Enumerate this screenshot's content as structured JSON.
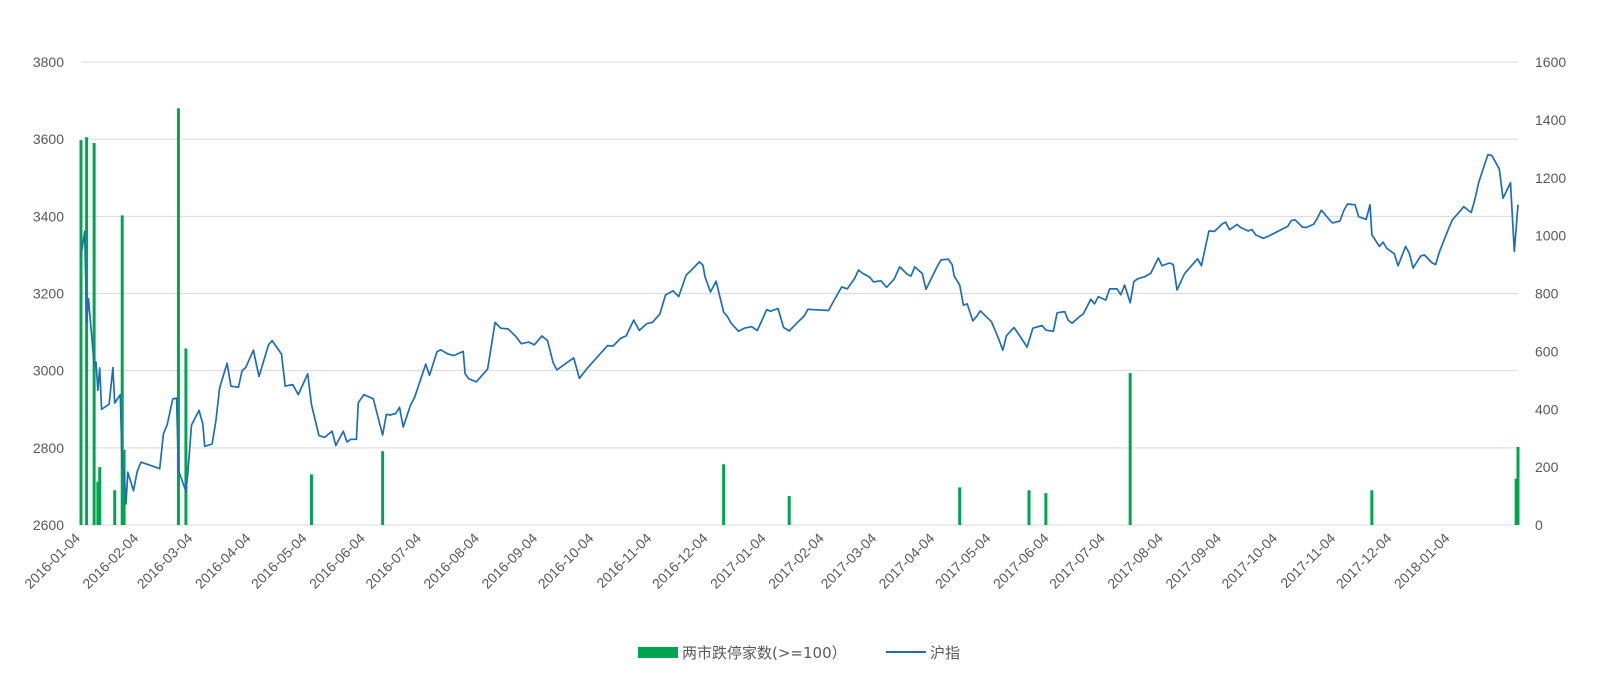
{
  "chart_data": {
    "type": "bar+line",
    "title": "",
    "left_axis": {
      "range": [
        2600,
        3800
      ],
      "ticks": [
        "2600",
        "2800",
        "3000",
        "3200",
        "3400",
        "3600",
        "3800"
      ]
    },
    "right_axis": {
      "range": [
        0,
        1600
      ],
      "ticks": [
        "0",
        "200",
        "400",
        "600",
        "800",
        "1000",
        "1200",
        "1400",
        "1600"
      ]
    },
    "x_range": [
      "2016-01-04",
      "2018-02-09"
    ],
    "x_ticks": [
      "2016-01-04",
      "2016-02-04",
      "2016-03-04",
      "2016-04-04",
      "2016-05-04",
      "2016-06-04",
      "2016-07-04",
      "2016-08-04",
      "2016-09-04",
      "2016-10-04",
      "2016-11-04",
      "2016-12-04",
      "2017-01-04",
      "2017-02-04",
      "2017-03-04",
      "2017-04-04",
      "2017-05-04",
      "2017-06-04",
      "2017-07-04",
      "2017-08-04",
      "2017-09-04",
      "2017-10-04",
      "2017-11-04",
      "2017-12-04",
      "2018-01-04"
    ],
    "grid": true,
    "legend_position": "bottom",
    "legend": [
      {
        "name": "两市跌停家数(>=100）",
        "kind": "bar",
        "color": "#00a550"
      },
      {
        "name": "沪指",
        "kind": "line",
        "color": "#1f6eb5"
      }
    ],
    "bar_series": {
      "name": "两市跌停家数(>=100）",
      "axis": "right",
      "color": "#00a550",
      "points": [
        [
          "2016-01-04",
          1330
        ],
        [
          "2016-01-07",
          1340
        ],
        [
          "2016-01-11",
          1320
        ],
        [
          "2016-01-13",
          150
        ],
        [
          "2016-01-14",
          200
        ],
        [
          "2016-01-22",
          120
        ],
        [
          "2016-01-26",
          1070
        ],
        [
          "2016-01-27",
          260
        ],
        [
          "2016-02-25",
          1440
        ],
        [
          "2016-02-29",
          610
        ],
        [
          "2016-05-06",
          175
        ],
        [
          "2016-06-13",
          255
        ],
        [
          "2016-12-12",
          210
        ],
        [
          "2017-01-16",
          100
        ],
        [
          "2017-04-17",
          130
        ],
        [
          "2017-05-24",
          120
        ],
        [
          "2017-06-02",
          110
        ],
        [
          "2017-07-17",
          525
        ],
        [
          "2017-11-23",
          120
        ],
        [
          "2018-02-08",
          160
        ],
        [
          "2018-02-09",
          270
        ]
      ]
    },
    "line_series": {
      "name": "沪指",
      "axis": "left",
      "color": "#1f6eb5",
      "points": [
        [
          "2016-01-04",
          3296
        ],
        [
          "2016-01-06",
          3361
        ],
        [
          "2016-01-07",
          3125
        ],
        [
          "2016-01-08",
          3186
        ],
        [
          "2016-01-11",
          3016
        ],
        [
          "2016-01-12",
          3022
        ],
        [
          "2016-01-13",
          2949
        ],
        [
          "2016-01-14",
          3007
        ],
        [
          "2016-01-15",
          2900
        ],
        [
          "2016-01-19",
          2913
        ],
        [
          "2016-01-21",
          3008
        ],
        [
          "2016-01-22",
          2916
        ],
        [
          "2016-01-25",
          2938
        ],
        [
          "2016-01-26",
          2749
        ],
        [
          "2016-01-27",
          2735
        ],
        [
          "2016-01-28",
          2655
        ],
        [
          "2016-01-29",
          2737
        ],
        [
          "2016-02-01",
          2689
        ],
        [
          "2016-02-03",
          2739
        ],
        [
          "2016-02-05",
          2763
        ],
        [
          "2016-02-15",
          2746
        ],
        [
          "2016-02-17",
          2836
        ],
        [
          "2016-02-19",
          2860
        ],
        [
          "2016-02-22",
          2927
        ],
        [
          "2016-02-24",
          2929
        ],
        [
          "2016-02-25",
          2742
        ],
        [
          "2016-02-29",
          2687
        ],
        [
          "2016-03-01",
          2733
        ],
        [
          "2016-03-03",
          2859
        ],
        [
          "2016-03-07",
          2897
        ],
        [
          "2016-03-09",
          2862
        ],
        [
          "2016-03-10",
          2804
        ],
        [
          "2016-03-14",
          2810
        ],
        [
          "2016-03-16",
          2870
        ],
        [
          "2016-03-18",
          2955
        ],
        [
          "2016-03-22",
          3019
        ],
        [
          "2016-03-24",
          2960
        ],
        [
          "2016-03-28",
          2957
        ],
        [
          "2016-03-30",
          3000
        ],
        [
          "2016-04-01",
          3009
        ],
        [
          "2016-04-05",
          3053
        ],
        [
          "2016-04-08",
          2985
        ],
        [
          "2016-04-13",
          3066
        ],
        [
          "2016-04-15",
          3078
        ],
        [
          "2016-04-20",
          3043
        ],
        [
          "2016-04-22",
          2960
        ],
        [
          "2016-04-26",
          2964
        ],
        [
          "2016-04-29",
          2938
        ],
        [
          "2016-05-04",
          2992
        ],
        [
          "2016-05-06",
          2913
        ],
        [
          "2016-05-10",
          2832
        ],
        [
          "2016-05-13",
          2827
        ],
        [
          "2016-05-17",
          2843
        ],
        [
          "2016-05-19",
          2806
        ],
        [
          "2016-05-23",
          2843
        ],
        [
          "2016-05-25",
          2815
        ],
        [
          "2016-05-27",
          2822
        ],
        [
          "2016-05-30",
          2822
        ],
        [
          "2016-05-31",
          2917
        ],
        [
          "2016-06-03",
          2938
        ],
        [
          "2016-06-08",
          2927
        ],
        [
          "2016-06-13",
          2833
        ],
        [
          "2016-06-15",
          2887
        ],
        [
          "2016-06-17",
          2885
        ],
        [
          "2016-06-20",
          2889
        ],
        [
          "2016-06-22",
          2905
        ],
        [
          "2016-06-24",
          2854
        ],
        [
          "2016-06-28",
          2912
        ],
        [
          "2016-06-30",
          2930
        ],
        [
          "2016-07-04",
          2988
        ],
        [
          "2016-07-06",
          3017
        ],
        [
          "2016-07-08",
          2988
        ],
        [
          "2016-07-12",
          3049
        ],
        [
          "2016-07-14",
          3054
        ],
        [
          "2016-07-18",
          3043
        ],
        [
          "2016-07-21",
          3039
        ],
        [
          "2016-07-26",
          3050
        ],
        [
          "2016-07-27",
          2992
        ],
        [
          "2016-07-29",
          2979
        ],
        [
          "2016-08-02",
          2971
        ],
        [
          "2016-08-04",
          2982
        ],
        [
          "2016-08-08",
          3004
        ],
        [
          "2016-08-12",
          3125
        ],
        [
          "2016-08-15",
          3110
        ],
        [
          "2016-08-19",
          3108
        ],
        [
          "2016-08-23",
          3089
        ],
        [
          "2016-08-26",
          3070
        ],
        [
          "2016-08-30",
          3074
        ],
        [
          "2016-09-02",
          3067
        ],
        [
          "2016-09-06",
          3090
        ],
        [
          "2016-09-09",
          3078
        ],
        [
          "2016-09-12",
          3021
        ],
        [
          "2016-09-14",
          3002
        ],
        [
          "2016-09-20",
          3023
        ],
        [
          "2016-09-23",
          3033
        ],
        [
          "2016-09-26",
          2980
        ],
        [
          "2016-09-30",
          3005
        ],
        [
          "2016-10-11",
          3065
        ],
        [
          "2016-10-14",
          3064
        ],
        [
          "2016-10-18",
          3084
        ],
        [
          "2016-10-21",
          3090
        ],
        [
          "2016-10-25",
          3131
        ],
        [
          "2016-10-28",
          3104
        ],
        [
          "2016-11-01",
          3122
        ],
        [
          "2016-11-04",
          3125
        ],
        [
          "2016-11-08",
          3147
        ],
        [
          "2016-11-11",
          3196
        ],
        [
          "2016-11-15",
          3207
        ],
        [
          "2016-11-18",
          3192
        ],
        [
          "2016-11-22",
          3248
        ],
        [
          "2016-11-25",
          3262
        ],
        [
          "2016-11-29",
          3282
        ],
        [
          "2016-12-01",
          3273
        ],
        [
          "2016-12-02",
          3244
        ],
        [
          "2016-12-05",
          3204
        ],
        [
          "2016-12-08",
          3232
        ],
        [
          "2016-12-12",
          3152
        ],
        [
          "2016-12-14",
          3140
        ],
        [
          "2016-12-16",
          3123
        ],
        [
          "2016-12-20",
          3102
        ],
        [
          "2016-12-23",
          3110
        ],
        [
          "2016-12-27",
          3114
        ],
        [
          "2016-12-30",
          3104
        ],
        [
          "2017-01-04",
          3158
        ],
        [
          "2017-01-06",
          3154
        ],
        [
          "2017-01-10",
          3161
        ],
        [
          "2017-01-13",
          3112
        ],
        [
          "2017-01-16",
          3103
        ],
        [
          "2017-01-18",
          3113
        ],
        [
          "2017-01-20",
          3123
        ],
        [
          "2017-01-24",
          3142
        ],
        [
          "2017-01-26",
          3159
        ],
        [
          "2017-02-06",
          3156
        ],
        [
          "2017-02-09",
          3183
        ],
        [
          "2017-02-13",
          3217
        ],
        [
          "2017-02-16",
          3212
        ],
        [
          "2017-02-20",
          3240
        ],
        [
          "2017-02-22",
          3261
        ],
        [
          "2017-02-24",
          3253
        ],
        [
          "2017-02-28",
          3242
        ],
        [
          "2017-03-02",
          3230
        ],
        [
          "2017-03-06",
          3233
        ],
        [
          "2017-03-09",
          3216
        ],
        [
          "2017-03-13",
          3237
        ],
        [
          "2017-03-16",
          3269
        ],
        [
          "2017-03-20",
          3250
        ],
        [
          "2017-03-22",
          3245
        ],
        [
          "2017-03-24",
          3269
        ],
        [
          "2017-03-28",
          3252
        ],
        [
          "2017-03-30",
          3211
        ],
        [
          "2017-04-05",
          3270
        ],
        [
          "2017-04-07",
          3287
        ],
        [
          "2017-04-11",
          3289
        ],
        [
          "2017-04-13",
          3275
        ],
        [
          "2017-04-14",
          3246
        ],
        [
          "2017-04-17",
          3222
        ],
        [
          "2017-04-19",
          3170
        ],
        [
          "2017-04-21",
          3173
        ],
        [
          "2017-04-24",
          3129
        ],
        [
          "2017-04-26",
          3140
        ],
        [
          "2017-04-28",
          3155
        ],
        [
          "2017-05-04",
          3127
        ],
        [
          "2017-05-08",
          3080
        ],
        [
          "2017-05-10",
          3053
        ],
        [
          "2017-05-12",
          3091
        ],
        [
          "2017-05-16",
          3112
        ],
        [
          "2017-05-19",
          3091
        ],
        [
          "2017-05-23",
          3061
        ],
        [
          "2017-05-26",
          3110
        ],
        [
          "2017-05-31",
          3117
        ],
        [
          "2017-06-02",
          3105
        ],
        [
          "2017-06-06",
          3102
        ],
        [
          "2017-06-08",
          3150
        ],
        [
          "2017-06-12",
          3153
        ],
        [
          "2017-06-14",
          3130
        ],
        [
          "2017-06-16",
          3123
        ],
        [
          "2017-06-20",
          3140
        ],
        [
          "2017-06-22",
          3147
        ],
        [
          "2017-06-26",
          3185
        ],
        [
          "2017-06-28",
          3173
        ],
        [
          "2017-06-30",
          3192
        ],
        [
          "2017-07-04",
          3183
        ],
        [
          "2017-07-06",
          3212
        ],
        [
          "2017-07-10",
          3212
        ],
        [
          "2017-07-12",
          3197
        ],
        [
          "2017-07-14",
          3222
        ],
        [
          "2017-07-17",
          3176
        ],
        [
          "2017-07-19",
          3231
        ],
        [
          "2017-07-21",
          3238
        ],
        [
          "2017-07-25",
          3244
        ],
        [
          "2017-07-28",
          3253
        ],
        [
          "2017-08-01",
          3292
        ],
        [
          "2017-08-03",
          3272
        ],
        [
          "2017-08-07",
          3279
        ],
        [
          "2017-08-09",
          3275
        ],
        [
          "2017-08-11",
          3209
        ],
        [
          "2017-08-15",
          3251
        ],
        [
          "2017-08-18",
          3268
        ],
        [
          "2017-08-22",
          3290
        ],
        [
          "2017-08-24",
          3272
        ],
        [
          "2017-08-28",
          3362
        ],
        [
          "2017-08-31",
          3361
        ],
        [
          "2017-09-04",
          3380
        ],
        [
          "2017-09-06",
          3385
        ],
        [
          "2017-09-08",
          3365
        ],
        [
          "2017-09-12",
          3379
        ],
        [
          "2017-09-14",
          3371
        ],
        [
          "2017-09-18",
          3362
        ],
        [
          "2017-09-20",
          3366
        ],
        [
          "2017-09-22",
          3352
        ],
        [
          "2017-09-26",
          3343
        ],
        [
          "2017-09-29",
          3349
        ],
        [
          "2017-10-09",
          3374
        ],
        [
          "2017-10-11",
          3389
        ],
        [
          "2017-10-13",
          3391
        ],
        [
          "2017-10-17",
          3372
        ],
        [
          "2017-10-19",
          3371
        ],
        [
          "2017-10-23",
          3380
        ],
        [
          "2017-10-25",
          3396
        ],
        [
          "2017-10-27",
          3416
        ],
        [
          "2017-10-31",
          3393
        ],
        [
          "2017-11-02",
          3383
        ],
        [
          "2017-11-06",
          3388
        ],
        [
          "2017-11-08",
          3415
        ],
        [
          "2017-11-10",
          3432
        ],
        [
          "2017-11-14",
          3430
        ],
        [
          "2017-11-16",
          3399
        ],
        [
          "2017-11-20",
          3392
        ],
        [
          "2017-11-22",
          3430
        ],
        [
          "2017-11-23",
          3352
        ],
        [
          "2017-11-27",
          3322
        ],
        [
          "2017-11-29",
          3333
        ],
        [
          "2017-12-01",
          3317
        ],
        [
          "2017-12-05",
          3303
        ],
        [
          "2017-12-07",
          3272
        ],
        [
          "2017-12-11",
          3322
        ],
        [
          "2017-12-13",
          3304
        ],
        [
          "2017-12-15",
          3266
        ],
        [
          "2017-12-19",
          3297
        ],
        [
          "2017-12-21",
          3300
        ],
        [
          "2017-12-25",
          3280
        ],
        [
          "2017-12-27",
          3275
        ],
        [
          "2017-12-29",
          3307
        ],
        [
          "2018-01-03",
          3369
        ],
        [
          "2018-01-05",
          3391
        ],
        [
          "2018-01-09",
          3413
        ],
        [
          "2018-01-11",
          3425
        ],
        [
          "2018-01-15",
          3410
        ],
        [
          "2018-01-17",
          3444
        ],
        [
          "2018-01-19",
          3488
        ],
        [
          "2018-01-23",
          3546
        ],
        [
          "2018-01-24",
          3560
        ],
        [
          "2018-01-26",
          3558
        ],
        [
          "2018-01-30",
          3523
        ],
        [
          "2018-02-01",
          3447
        ],
        [
          "2018-02-05",
          3487
        ],
        [
          "2018-02-07",
          3309
        ],
        [
          "2018-02-09",
          3430
        ]
      ]
    }
  }
}
